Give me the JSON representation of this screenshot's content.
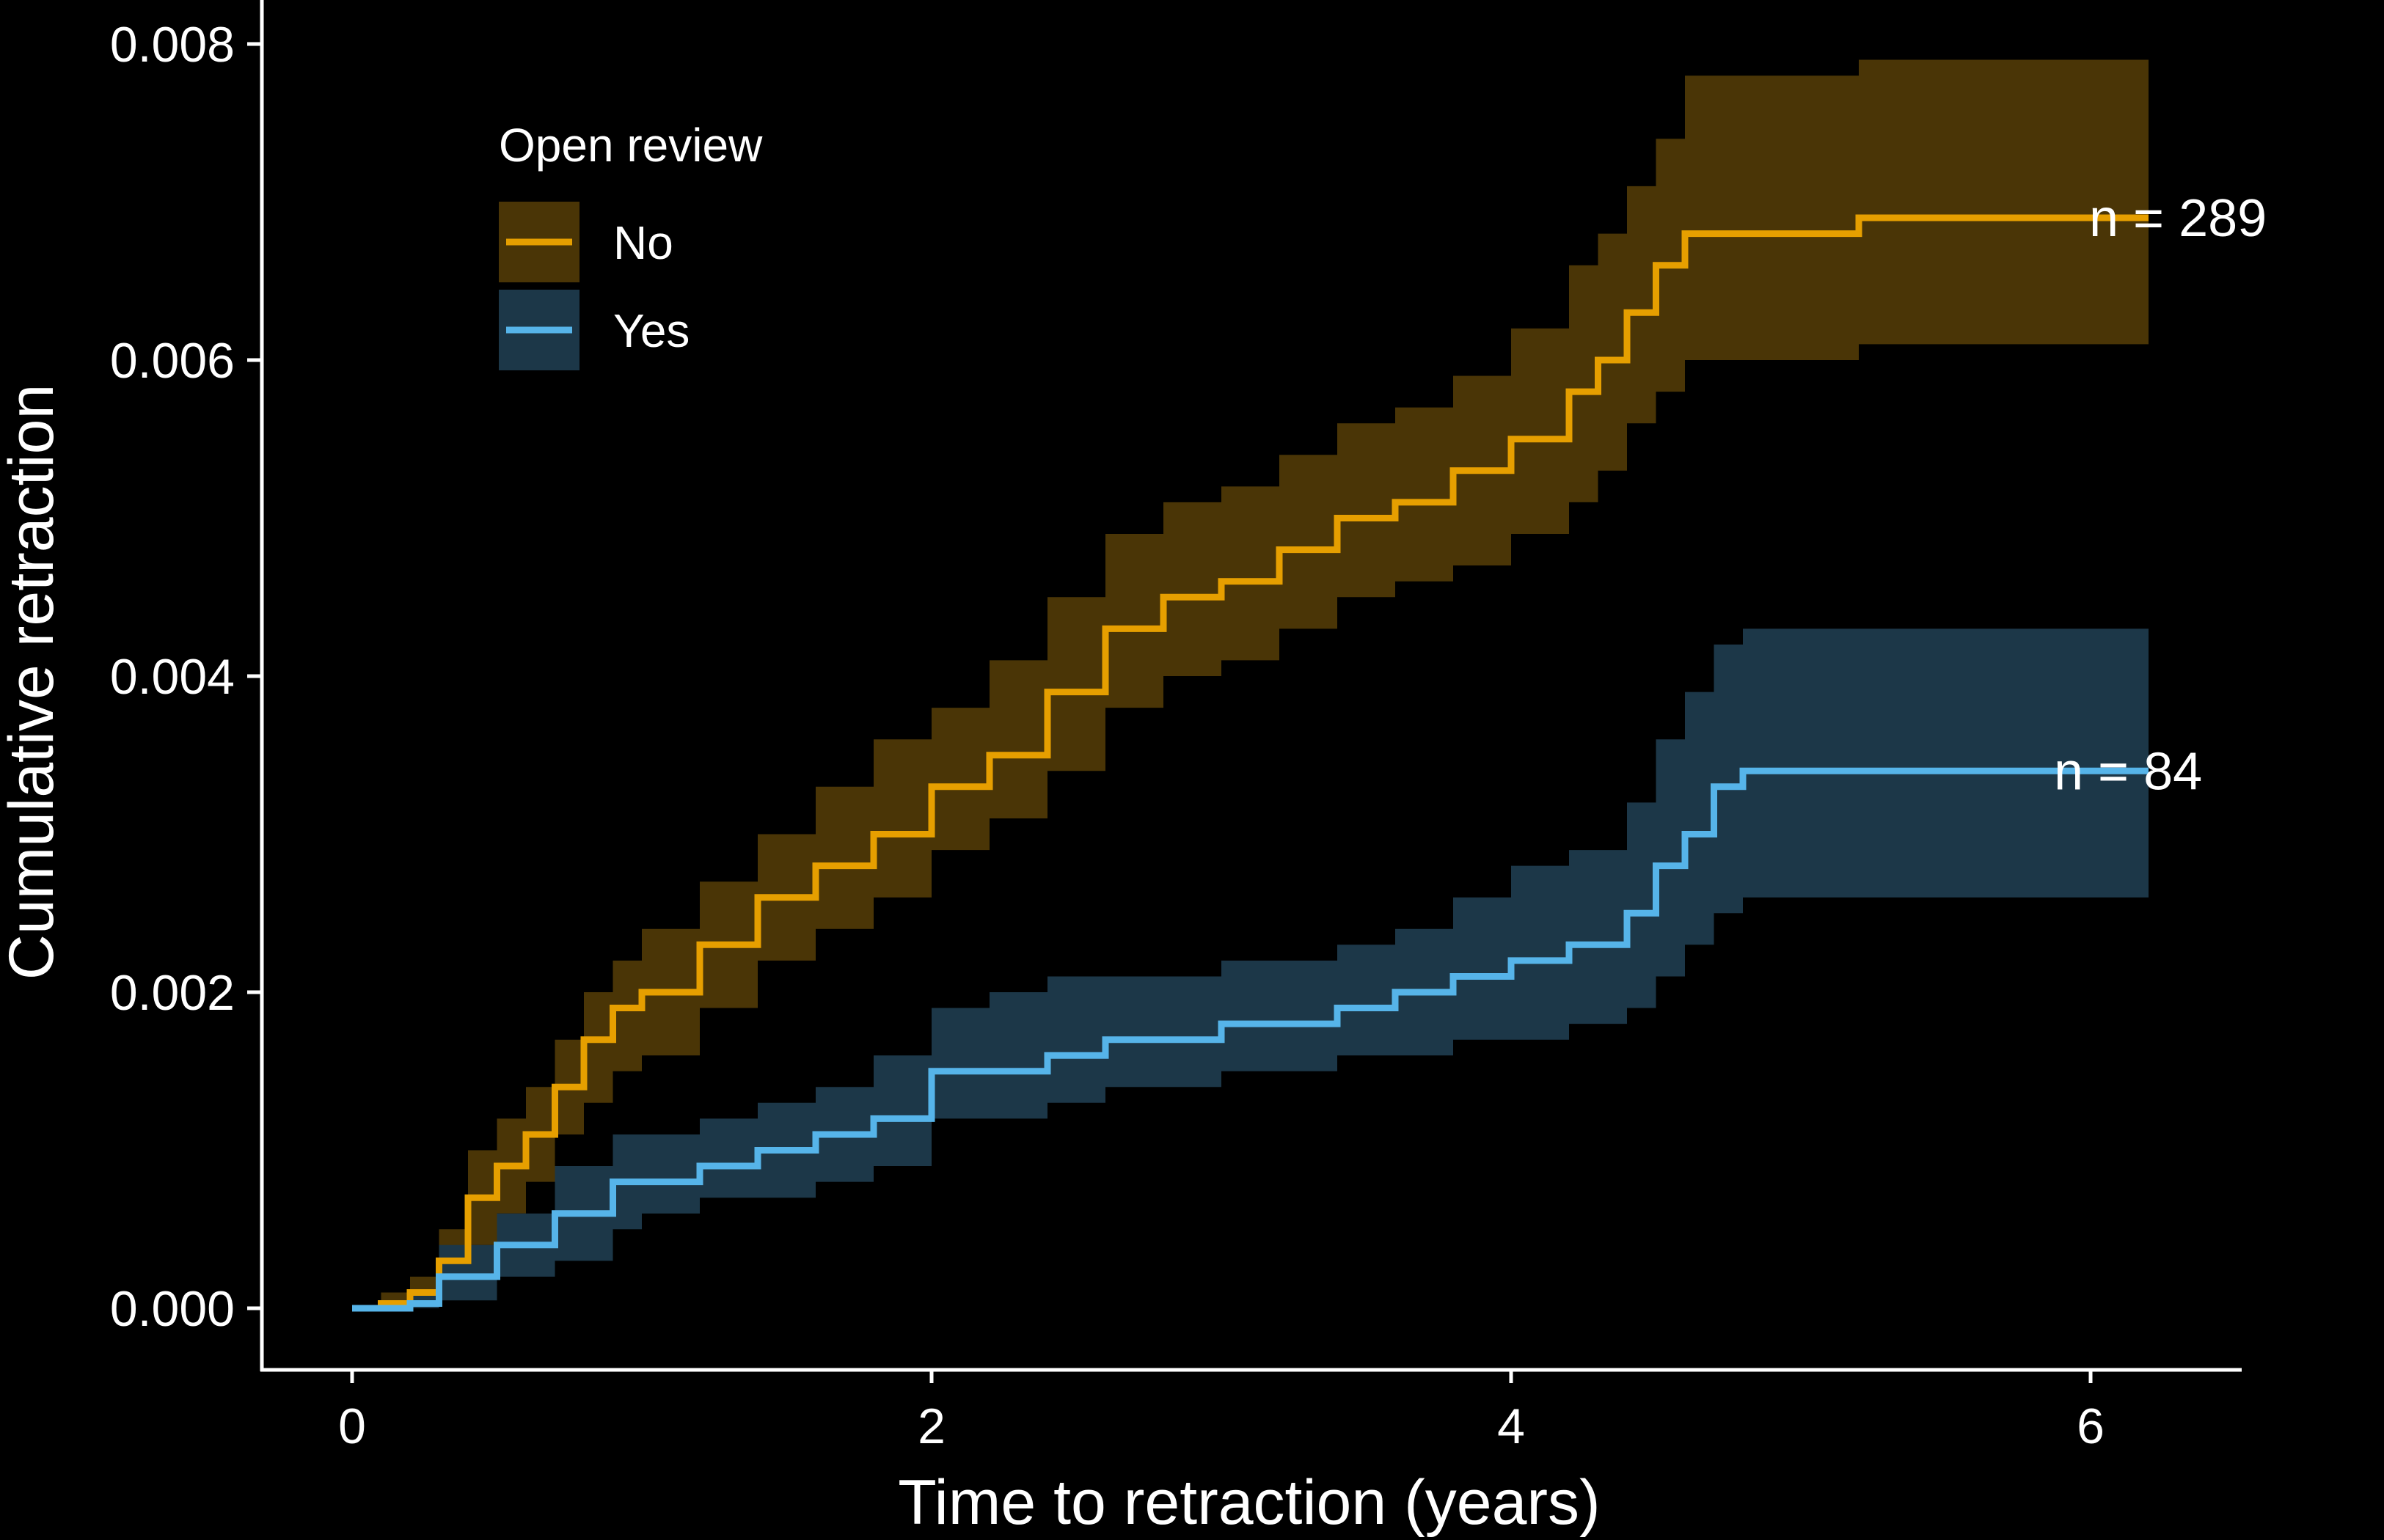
{
  "chart_data": {
    "type": "line",
    "title": "",
    "xlabel": "Time to retraction (years)",
    "ylabel": "Cumulative retraction",
    "xlim": [
      -0.3,
      6.55
    ],
    "ylim": [
      -0.0004,
      0.0083
    ],
    "x_ticks": [
      0,
      2,
      4,
      6
    ],
    "x_tick_labels": [
      "0",
      "2",
      "4",
      "6"
    ],
    "y_ticks": [
      0.0,
      0.002,
      0.004,
      0.006,
      0.008
    ],
    "y_tick_labels": [
      "0.000",
      "0.002",
      "0.004",
      "0.006",
      "0.008"
    ],
    "grid": false,
    "background": "#000000",
    "legend": {
      "title": "Open review",
      "placement": "top-left",
      "entries": [
        "No",
        "Yes"
      ]
    },
    "series": [
      {
        "name": "No",
        "color": "#E69F00",
        "band_color": "#4A3506",
        "step": true,
        "end_label": "n = 289",
        "x": [
          0.0,
          0.1,
          0.2,
          0.3,
          0.4,
          0.5,
          0.6,
          0.7,
          0.8,
          0.9,
          1.0,
          1.2,
          1.4,
          1.6,
          1.8,
          2.0,
          2.2,
          2.4,
          2.6,
          2.8,
          3.0,
          3.2,
          3.4,
          3.6,
          3.8,
          4.0,
          4.2,
          4.3,
          4.4,
          4.5,
          4.6,
          4.8,
          5.0,
          5.2,
          5.6,
          6.0,
          6.2
        ],
        "y": [
          0.0,
          3e-05,
          0.0001,
          0.0003,
          0.0007,
          0.0009,
          0.0011,
          0.0014,
          0.0017,
          0.0019,
          0.002,
          0.0023,
          0.0026,
          0.0028,
          0.003,
          0.0033,
          0.0035,
          0.0039,
          0.0043,
          0.0045,
          0.0046,
          0.0048,
          0.005,
          0.0051,
          0.0053,
          0.0055,
          0.0058,
          0.006,
          0.0063,
          0.0066,
          0.0068,
          0.0068,
          0.0068,
          0.0069,
          0.0069,
          0.0069,
          0.0069
        ],
        "lower": [
          0.0,
          0.0,
          3e-05,
          0.0001,
          0.0004,
          0.0006,
          0.0008,
          0.0011,
          0.0013,
          0.0015,
          0.0016,
          0.0019,
          0.0022,
          0.0024,
          0.0026,
          0.0029,
          0.0031,
          0.0034,
          0.0038,
          0.004,
          0.0041,
          0.0043,
          0.0045,
          0.0046,
          0.0047,
          0.0049,
          0.0051,
          0.0053,
          0.0056,
          0.0058,
          0.006,
          0.006,
          0.006,
          0.0061,
          0.0061,
          0.0061,
          0.0061
        ],
        "upper": [
          0.0,
          0.0001,
          0.0002,
          0.0005,
          0.001,
          0.0012,
          0.0014,
          0.0017,
          0.002,
          0.0022,
          0.0024,
          0.0027,
          0.003,
          0.0033,
          0.0036,
          0.0038,
          0.0041,
          0.0045,
          0.0049,
          0.0051,
          0.0052,
          0.0054,
          0.0056,
          0.0057,
          0.0059,
          0.0062,
          0.0066,
          0.0068,
          0.0071,
          0.0074,
          0.0078,
          0.0078,
          0.0078,
          0.0079,
          0.0079,
          0.0079,
          0.0079
        ]
      },
      {
        "name": "Yes",
        "color": "#56B4E9",
        "band_color": "#1C3748",
        "step": true,
        "end_label": "n = 84",
        "x": [
          0.0,
          0.2,
          0.3,
          0.5,
          0.7,
          0.9,
          1.0,
          1.2,
          1.4,
          1.6,
          1.8,
          2.0,
          2.2,
          2.4,
          2.6,
          2.8,
          3.0,
          3.2,
          3.4,
          3.6,
          3.8,
          4.0,
          4.2,
          4.3,
          4.4,
          4.5,
          4.6,
          4.7,
          4.8,
          5.0,
          5.5,
          6.0,
          6.2
        ],
        "y": [
          0.0,
          3e-05,
          0.0002,
          0.0004,
          0.0006,
          0.0008,
          0.0008,
          0.0009,
          0.001,
          0.0011,
          0.0012,
          0.0015,
          0.0015,
          0.0016,
          0.0017,
          0.0017,
          0.0018,
          0.0018,
          0.0019,
          0.002,
          0.0021,
          0.0022,
          0.0023,
          0.0023,
          0.0025,
          0.0028,
          0.003,
          0.0033,
          0.0034,
          0.0034,
          0.0034,
          0.0034,
          0.0034
        ],
        "lower": [
          0.0,
          0.0,
          5e-05,
          0.0002,
          0.0003,
          0.0005,
          0.0006,
          0.0007,
          0.0007,
          0.0008,
          0.0009,
          0.0012,
          0.0012,
          0.0013,
          0.0014,
          0.0014,
          0.0015,
          0.0015,
          0.0016,
          0.0016,
          0.0017,
          0.0017,
          0.0018,
          0.0018,
          0.0019,
          0.0021,
          0.0023,
          0.0025,
          0.0026,
          0.0026,
          0.0026,
          0.0026,
          0.0026
        ],
        "upper": [
          0.0,
          0.0001,
          0.0004,
          0.0006,
          0.0009,
          0.0011,
          0.0011,
          0.0012,
          0.0013,
          0.0014,
          0.0016,
          0.0019,
          0.002,
          0.0021,
          0.0021,
          0.0021,
          0.0022,
          0.0022,
          0.0023,
          0.0024,
          0.0026,
          0.0028,
          0.0029,
          0.0029,
          0.0032,
          0.0036,
          0.0039,
          0.0042,
          0.0043,
          0.0043,
          0.0043,
          0.0043,
          0.0043
        ]
      }
    ]
  }
}
